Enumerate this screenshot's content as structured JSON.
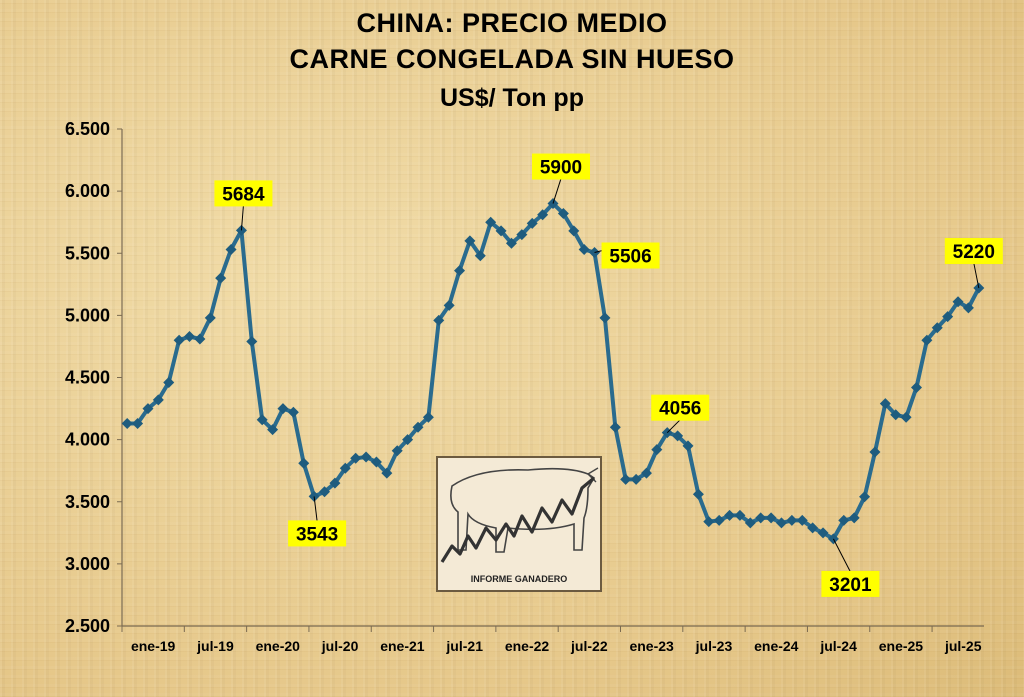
{
  "header": {
    "title_line1": "CHINA: PRECIO MEDIO",
    "title_line2": "CARNE CONGELADA SIN HUESO",
    "subtitle": "US$/ Ton pp"
  },
  "logo": {
    "caption": "INFORME GANADERO"
  },
  "colors": {
    "line": "#2a6b8e",
    "marker": "#1f5c7e",
    "label_bg": "#ffff00"
  },
  "chart_data": {
    "type": "line",
    "title": "CHINA: PRECIO MEDIO CARNE CONGELADA SIN HUESO",
    "ylabel": "US$/ Ton pp",
    "ylim": [
      2500,
      6500
    ],
    "yticks": [
      2500,
      3000,
      3500,
      4000,
      4500,
      5000,
      5500,
      6000,
      6500
    ],
    "ytick_labels": [
      "2.500",
      "3.000",
      "3.500",
      "4.000",
      "4.500",
      "5.000",
      "5.500",
      "6.000",
      "6.500"
    ],
    "x_tick_labels": [
      "ene-19",
      "jul-19",
      "ene-20",
      "jul-20",
      "ene-21",
      "jul-21",
      "ene-22",
      "jul-22",
      "ene-23",
      "jul-23",
      "ene-24",
      "jul-24",
      "ene-25",
      "jul-25"
    ],
    "x_start": "ene-19",
    "frequency": "monthly",
    "grid": false,
    "legend": "none",
    "series": [
      {
        "values": [
          4130,
          4130,
          4250,
          4320,
          4460,
          4800,
          4830,
          4810,
          4980,
          5300,
          5530,
          5684,
          4790,
          4160,
          4080,
          4250,
          4220,
          3810,
          3543,
          3580,
          3650,
          3770,
          3850,
          3860,
          3820,
          3730,
          3910,
          4000,
          4100,
          4180,
          4960,
          5080,
          5360,
          5600,
          5480,
          5750,
          5680,
          5580,
          5650,
          5740,
          5810,
          5900,
          5820,
          5680,
          5530,
          5506,
          4980,
          4100,
          3680,
          3680,
          3730,
          3920,
          4056,
          4030,
          3950,
          3560,
          3340,
          3350,
          3390,
          3390,
          3330,
          3370,
          3370,
          3330,
          3350,
          3350,
          3290,
          3250,
          3201,
          3350,
          3370,
          3540,
          3900,
          4290,
          4200,
          4180,
          4420,
          4800,
          4900,
          4990,
          5110,
          5060,
          5220
        ]
      }
    ],
    "annotations": [
      {
        "text": "5684",
        "value": 5684,
        "month": "dic-19"
      },
      {
        "text": "3543",
        "value": 3543,
        "month": "jul-20"
      },
      {
        "text": "5900",
        "value": 5900,
        "month": "jun-22"
      },
      {
        "text": "5506",
        "value": 5506,
        "month": "oct-22"
      },
      {
        "text": "4056",
        "value": 4056,
        "month": "may-23"
      },
      {
        "text": "3201",
        "value": 3201,
        "month": "sep-24"
      },
      {
        "text": "5220",
        "value": 5220,
        "month": "nov-25"
      }
    ]
  }
}
